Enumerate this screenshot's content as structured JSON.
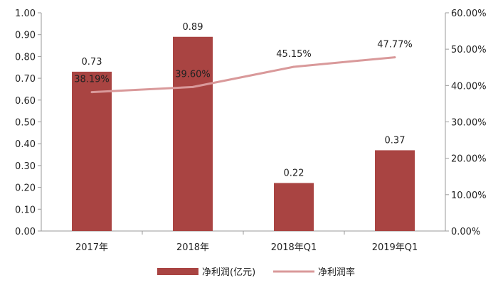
{
  "chart_data": {
    "type": "bar",
    "categories": [
      "2017年",
      "2018年",
      "2018年Q1",
      "2019年Q1"
    ],
    "series": [
      {
        "name": "净利润(亿元)",
        "kind": "bar",
        "axis": "left",
        "values": [
          0.73,
          0.89,
          0.22,
          0.37
        ],
        "labels": [
          "0.73",
          "0.89",
          "0.22",
          "0.37"
        ],
        "color": "#a94442"
      },
      {
        "name": "净利润率",
        "kind": "line",
        "axis": "right",
        "values": [
          38.19,
          39.6,
          45.15,
          47.77
        ],
        "labels": [
          "38.19%",
          "39.60%",
          "45.15%",
          "47.77%"
        ],
        "color": "#d9999a"
      }
    ],
    "y_left": {
      "range": [
        0,
        1.0
      ],
      "ticks": [
        "0.00",
        "0.10",
        "0.20",
        "0.30",
        "0.40",
        "0.50",
        "0.60",
        "0.70",
        "0.80",
        "0.90",
        "1.00"
      ]
    },
    "y_right": {
      "range": [
        0,
        60
      ],
      "ticks": [
        "0.00%",
        "10.00%",
        "20.00%",
        "30.00%",
        "40.00%",
        "50.00%",
        "60.00%"
      ]
    },
    "grid": false,
    "legend_position": "bottom"
  }
}
